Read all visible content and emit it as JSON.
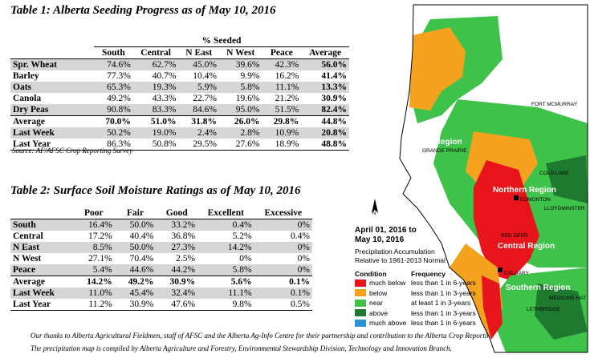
{
  "table1": {
    "title": "Table 1: Alberta Seeding Progress as of May 10, 2016",
    "group_header": "% Seeded",
    "columns": [
      "South",
      "Central",
      "N East",
      "N West",
      "Peace",
      "Average"
    ],
    "rows": [
      {
        "label": "Spr. Wheat",
        "values": [
          "74.6%",
          "62.7%",
          "45.0%",
          "39.6%",
          "42.3%",
          "56.0%"
        ]
      },
      {
        "label": "Barley",
        "values": [
          "77.3%",
          "40.7%",
          "10.4%",
          "9.9%",
          "16.2%",
          "41.4%"
        ]
      },
      {
        "label": "Oats",
        "values": [
          "65.3%",
          "19.3%",
          "5.9%",
          "5.8%",
          "11.1%",
          "13.3%"
        ]
      },
      {
        "label": "Canola",
        "values": [
          "49.2%",
          "43.3%",
          "22.7%",
          "19.6%",
          "21.2%",
          "30.9%"
        ]
      },
      {
        "label": "Dry Peas",
        "values": [
          "90.8%",
          "83.3%",
          "84.6%",
          "95.0%",
          "51.5%",
          "82.4%"
        ]
      },
      {
        "label": "Average",
        "values": [
          "70.0%",
          "51.0%",
          "31.8%",
          "26.0%",
          "29.8%",
          "44.8%"
        ]
      },
      {
        "label": "Last Week",
        "values": [
          "50.2%",
          "19.0%",
          "2.4%",
          "2.8%",
          "10.9%",
          "20.8%"
        ]
      },
      {
        "label": "Last Year",
        "values": [
          "86.3%",
          "50.8%",
          "29.5%",
          "27.6%",
          "18.9%",
          "48.8%"
        ]
      }
    ],
    "source": "Source: AF/AFSC Crop Reporting Survey"
  },
  "table2": {
    "title": "Table 2: Surface Soil Moisture Ratings as of May 10, 2016",
    "columns": [
      "Poor",
      "Fair",
      "Good",
      "Excellent",
      "Excessive"
    ],
    "rows": [
      {
        "label": "South",
        "values": [
          "16.4%",
          "50.0%",
          "33.2%",
          "0.4%",
          "0%"
        ]
      },
      {
        "label": "Central",
        "values": [
          "17.2%",
          "40.4%",
          "36.8%",
          "5.2%",
          "0.4%"
        ]
      },
      {
        "label": "N East",
        "values": [
          "8.5%",
          "50.0%",
          "27.3%",
          "14.2%",
          "0%"
        ]
      },
      {
        "label": "N West",
        "values": [
          "27.1%",
          "70.4%",
          "2.5%",
          "0%",
          "0%"
        ]
      },
      {
        "label": "Peace",
        "values": [
          "5.4%",
          "44.6%",
          "44.2%",
          "5.8%",
          "0%"
        ]
      },
      {
        "label": "Average",
        "values": [
          "14.2%",
          "49.2%",
          "30.9%",
          "5.6%",
          "0.1%"
        ]
      },
      {
        "label": "Last Week",
        "values": [
          "11.0%",
          "45.4%",
          "32.4%",
          "11.1%",
          "0.1%"
        ]
      },
      {
        "label": "Last Year",
        "values": [
          "11.2%",
          "30.9%",
          "47.6%",
          "9.8%",
          "0.5%"
        ]
      }
    ]
  },
  "footer": {
    "line1": "Our thanks to Alberta Agricultural Fieldmen, staff of AFSC and the Alberta Ag-Info Centre for their partnership and contribution to the Alberta Crop Reporting Program.",
    "line2": "The precipitation map is compiled by Alberta Agriculture and Forestry, Environmental Stewardship Division, Technology and Innovation Branch."
  },
  "map": {
    "north_label": "N",
    "title_line1": "April 01, 2016 to",
    "title_line2": "May 10, 2016",
    "subtitle_line1": "Precipitation Accumulation",
    "subtitle_line2": "Relative to 1961-2013 Normal",
    "legend_condition_header": "Condition",
    "legend_frequency_header": "Frequency",
    "legend": [
      {
        "condition": "much below",
        "frequency": "less than 1 in 6-years",
        "color": "#e8141c"
      },
      {
        "condition": "below",
        "frequency": "less than 1 in 3-years",
        "color": "#f5a31f"
      },
      {
        "condition": "near",
        "frequency": "at least 1 in 3-years",
        "color": "#3fc24a"
      },
      {
        "condition": "above",
        "frequency": "less than 1 in 3-years",
        "color": "#1e7a2e"
      },
      {
        "condition": "much above",
        "frequency": "less than 1 in 6-years",
        "color": "#2f8fd8"
      }
    ],
    "regions": {
      "peace": "Peace Region",
      "northern": "Northern Region",
      "central": "Central Region",
      "southern": "Southern Region"
    },
    "cities": {
      "fort_mcmurray": "FORT MCMURRAY",
      "grande_prairie": "GRANDE PRAIRIE",
      "cold_lake": "COLD LAKE",
      "edmonton": "EDMONTON",
      "lloydminster": "LLOYDMINSTER",
      "red_deer": "RED DEER",
      "calgary": "CALGARY",
      "medicine_hat": "MEDICINE HAT",
      "lethbridge": "LETHBRIDGE"
    }
  }
}
